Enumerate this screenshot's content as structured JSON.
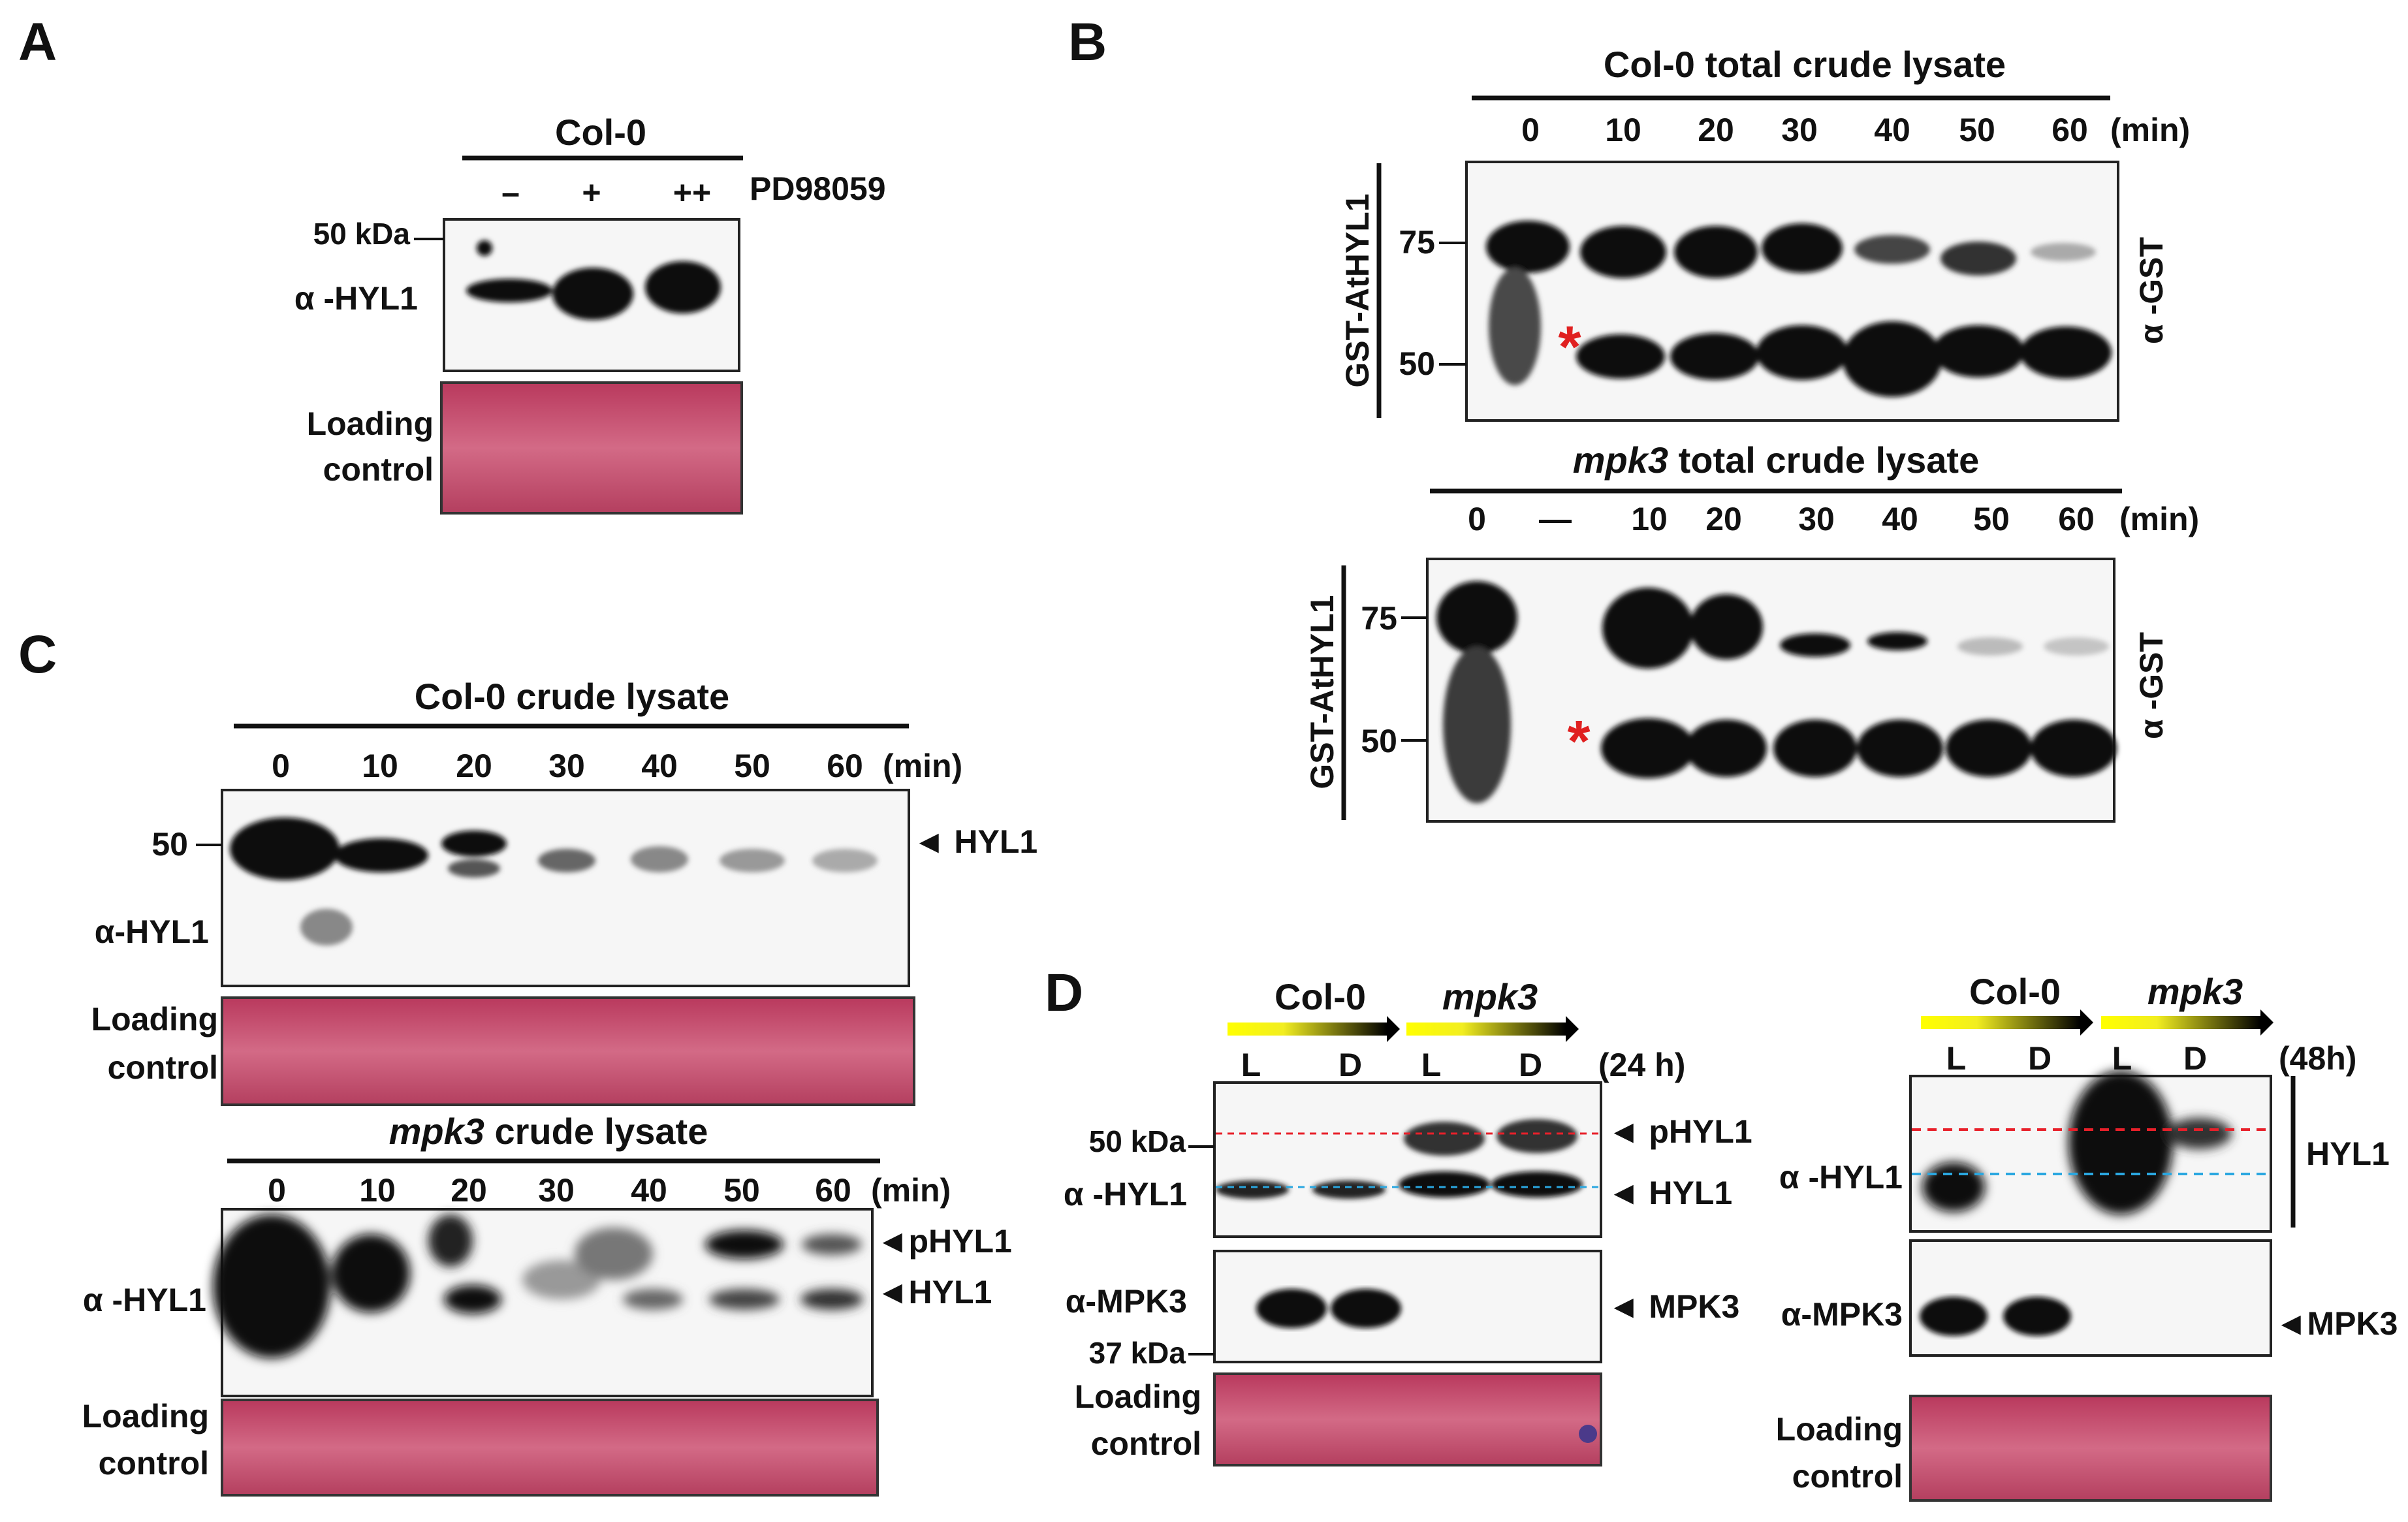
{
  "panels": {
    "A": {
      "letter": "A",
      "title": "Col-0",
      "lanes": [
        "–",
        "+",
        "++"
      ],
      "treatment": "PD98059",
      "marker": "50 kDa",
      "antibody": "α -HYL1",
      "loading": [
        "Loading",
        "control"
      ]
    },
    "B": {
      "letter": "B",
      "top_title": "Col-0 total crude lysate",
      "top_lanes": [
        "0",
        "10",
        "20",
        "30",
        "40",
        "50",
        "60",
        "(min)"
      ],
      "bottom_title_italic": "mpk3",
      "bottom_title_rest": " total crude lysate",
      "bottom_lanes": [
        "0",
        "—",
        "10",
        "20",
        "30",
        "40",
        "50",
        "60",
        "(min)"
      ],
      "side_label": "GST-AtHYL1",
      "markers": [
        "75",
        "50"
      ],
      "antibody": "α -GST",
      "asterisk": "*"
    },
    "C": {
      "letter": "C",
      "top_title": "Col-0 crude lysate",
      "lanes": [
        "0",
        "10",
        "20",
        "30",
        "40",
        "50",
        "60",
        "(min)"
      ],
      "marker": "50",
      "band_hyl1": "◄ HYL1",
      "antibody_top": "α-HYL1",
      "antibody_bottom": "α -HYL1",
      "loading": [
        "Loading",
        "control"
      ],
      "bottom_title_italic": "mpk3",
      "bottom_title_rest": " crude lysate",
      "band_phyl1": "◄pHYL1",
      "band_hyl1_b": "◄HYL1"
    },
    "D": {
      "letter": "D",
      "geno_col": "Col-0",
      "geno_mpk": "mpk3",
      "lanes": [
        "L",
        "D",
        "L",
        "D"
      ],
      "time_left": "(24 h)",
      "time_right": "(48h)",
      "marker_50": "50 kDa",
      "marker_37": "37 kDa",
      "antibody_hyl1": "α -HYL1",
      "antibody_mpk3": "α-MPK3",
      "band_phyl1": "◄ pHYL1",
      "band_hyl1": "◄ HYL1",
      "band_mpk3": "◄ MPK3",
      "band_mpk3_r": "◄MPK3",
      "side_hyl1": "HYL1",
      "loading": [
        "Loading",
        "control"
      ]
    }
  },
  "colors": {
    "ponceau": "#c7506f",
    "red_dash": "#e8202a",
    "blue_dash": "#2aa7e0",
    "asterisk": "#e02020",
    "gradient_start": "#ffff00",
    "gradient_end": "#000000"
  }
}
